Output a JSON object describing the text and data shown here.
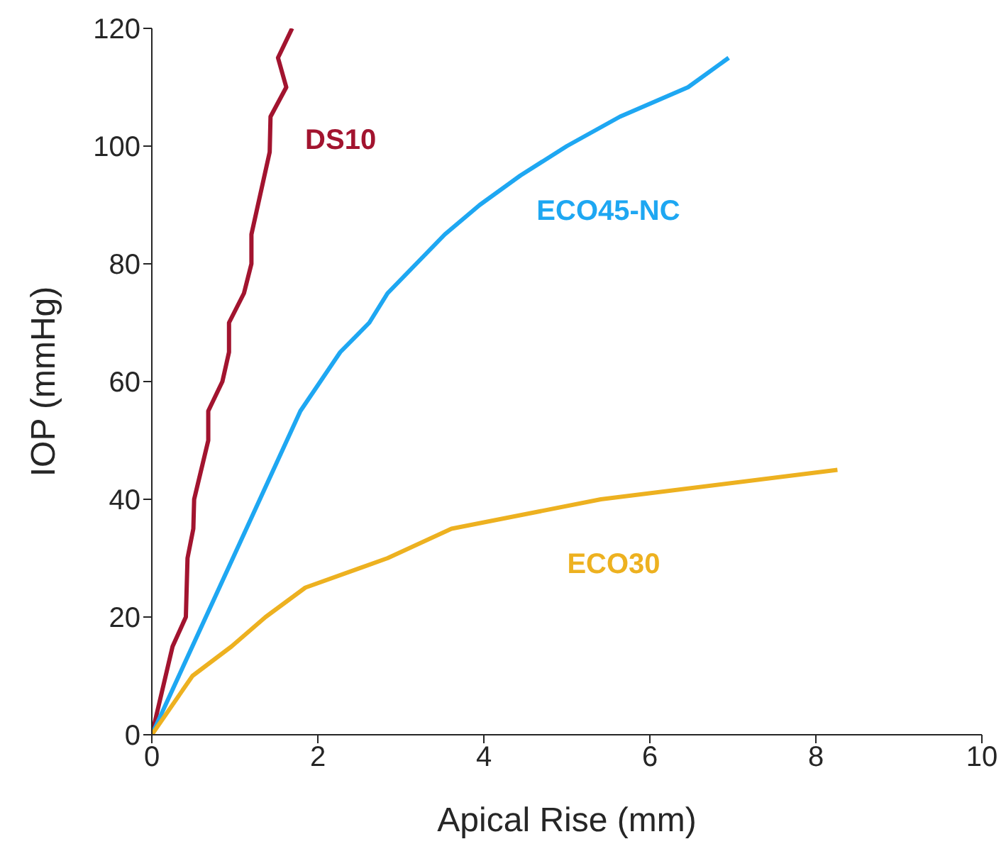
{
  "chart_data": {
    "type": "line",
    "xlabel": "Apical Rise (mm)",
    "ylabel": "IOP (mmHg)",
    "xlim": [
      0,
      10
    ],
    "xticks": [
      0,
      2,
      4,
      6,
      8,
      10
    ],
    "ylim": [
      0,
      120
    ],
    "yticks": [
      0,
      20,
      40,
      60,
      80,
      100,
      120
    ],
    "grid": false,
    "legend": false,
    "marker": "none",
    "line_style": "solid",
    "series": [
      {
        "name": "DS10",
        "color": "#a2142f",
        "x": [
          0,
          0.25,
          0.41,
          0.43,
          0.5,
          0.51,
          0.68,
          0.68,
          0.85,
          0.93,
          0.93,
          1.11,
          1.2,
          1.2,
          1.42,
          1.43,
          1.62,
          1.52,
          1.69
        ],
        "values": [
          0,
          15,
          20,
          30,
          35,
          40,
          50,
          55,
          60,
          65,
          70,
          75,
          80,
          85,
          99,
          105,
          110,
          115,
          120
        ]
      },
      {
        "name": "ECO45-NC",
        "color": "#1ea7f2",
        "x": [
          0,
          1.79,
          2.27,
          2.62,
          2.84,
          3.53,
          3.95,
          4.44,
          5.0,
          5.64,
          6.46,
          6.95
        ],
        "values": [
          0,
          55,
          65,
          70,
          75,
          85,
          90,
          95,
          100,
          105,
          110,
          115
        ]
      },
      {
        "name": "ECO30",
        "color": "#edb120",
        "x": [
          0,
          0.49,
          0.96,
          1.37,
          1.85,
          2.84,
          3.61,
          5.41,
          8.26
        ],
        "values": [
          0,
          10,
          15,
          20,
          25,
          30,
          35,
          40,
          45
        ]
      }
    ]
  }
}
